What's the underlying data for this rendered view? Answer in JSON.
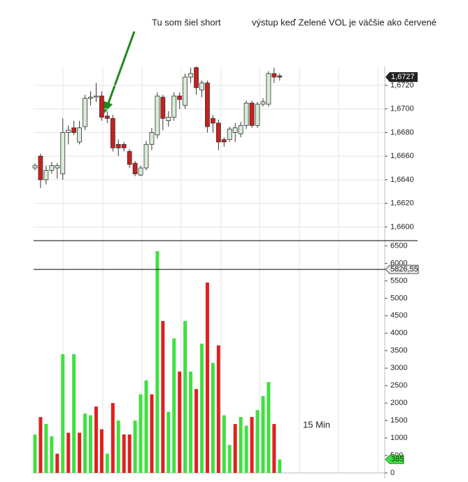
{
  "chart_data": [
    {
      "type": "candlestick",
      "annotations": [
        "Tu som šiel short",
        "výstup keď Zelené VOL je väčšie  ako červené",
        "15 Min"
      ],
      "open": [
        1.665,
        1.666,
        1.664,
        1.6648,
        1.665,
        1.6645,
        1.668,
        1.6684,
        1.6672,
        1.6685,
        1.6709,
        1.671,
        1.6711,
        1.6694,
        1.6692,
        1.667,
        1.667,
        1.6664,
        1.6654,
        1.6644,
        1.665,
        1.667,
        1.6678,
        1.671,
        1.669,
        1.6693,
        1.6711,
        1.6703,
        1.6727,
        1.6735,
        1.6716,
        1.6722,
        1.6692,
        1.6688,
        1.6674,
        1.6674,
        1.668,
        1.6679,
        1.6686,
        1.6705,
        1.6686,
        1.6704,
        1.6704,
        1.673,
        1.6728
      ],
      "high": [
        1.6654,
        1.6662,
        1.6652,
        1.6655,
        1.6654,
        1.6692,
        1.6686,
        1.669,
        1.669,
        1.6712,
        1.6715,
        1.6722,
        1.6715,
        1.6698,
        1.6695,
        1.6674,
        1.6672,
        1.6666,
        1.6656,
        1.6652,
        1.6673,
        1.6684,
        1.6714,
        1.6712,
        1.6698,
        1.6714,
        1.6714,
        1.673,
        1.6735,
        1.6736,
        1.6724,
        1.6724,
        1.6695,
        1.6691,
        1.6676,
        1.6685,
        1.6688,
        1.6689,
        1.6707,
        1.6707,
        1.6706,
        1.6709,
        1.6732,
        1.6735,
        1.673
      ],
      "low": [
        1.6648,
        1.6633,
        1.6636,
        1.6645,
        1.6641,
        1.664,
        1.667,
        1.6678,
        1.667,
        1.6682,
        1.6703,
        1.6706,
        1.669,
        1.6688,
        1.6664,
        1.666,
        1.6664,
        1.665,
        1.6643,
        1.6643,
        1.6648,
        1.6665,
        1.6675,
        1.6682,
        1.6685,
        1.669,
        1.67,
        1.67,
        1.6722,
        1.6712,
        1.671,
        1.668,
        1.668,
        1.6665,
        1.6668,
        1.6672,
        1.6672,
        1.6676,
        1.6683,
        1.6684,
        1.6684,
        1.6702,
        1.6702,
        1.6722,
        1.6724
      ],
      "close": [
        1.6652,
        1.664,
        1.6648,
        1.6652,
        1.6652,
        1.668,
        1.6682,
        1.668,
        1.6684,
        1.6709,
        1.671,
        1.6711,
        1.6693,
        1.6692,
        1.6667,
        1.6667,
        1.6667,
        1.6653,
        1.6645,
        1.665,
        1.667,
        1.668,
        1.6711,
        1.6692,
        1.6693,
        1.6711,
        1.6708,
        1.6727,
        1.673,
        1.6718,
        1.6722,
        1.6685,
        1.6688,
        1.6672,
        1.6672,
        1.6683,
        1.6684,
        1.6686,
        1.6705,
        1.6686,
        1.6704,
        1.6706,
        1.673,
        1.6727,
        1.6727
      ],
      "up_color": "#d8ecd8",
      "down_color": "#c8201c",
      "ylim": [
        1.6589,
        1.6736
      ],
      "yticks": [
        {
          "value": 1.66,
          "label": "1,6600"
        },
        {
          "value": 1.662,
          "label": "1,6620"
        },
        {
          "value": 1.664,
          "label": "1,6640"
        },
        {
          "value": 1.666,
          "label": "1,6660"
        },
        {
          "value": 1.668,
          "label": "1,6680"
        },
        {
          "value": 1.67,
          "label": "1,6700"
        },
        {
          "value": 1.672,
          "label": "1,6720"
        }
      ],
      "last_price": {
        "value": 1.6727,
        "label": "1,6727"
      },
      "grid": true
    },
    {
      "type": "bar",
      "values": [
        1100,
        1600,
        1400,
        1050,
        550,
        3400,
        1150,
        3400,
        1150,
        1700,
        1650,
        1900,
        1250,
        550,
        2000,
        1500,
        1100,
        1100,
        1500,
        2250,
        2650,
        2250,
        6350,
        4350,
        1750,
        3850,
        2900,
        4350,
        2900,
        2400,
        3700,
        5450,
        3150,
        3650,
        1650,
        800,
        1400,
        1600,
        1350,
        1600,
        1800,
        2200,
        2600,
        1400,
        385
      ],
      "colors": [
        "#40e040",
        "#e02020",
        "#40e040",
        "#40e040",
        "#e02020",
        "#40e040",
        "#e02020",
        "#40e040",
        "#e02020",
        "#40e040",
        "#40e040",
        "#e02020",
        "#e02020",
        "#40e040",
        "#e02020",
        "#40e040",
        "#e02020",
        "#e02020",
        "#40e040",
        "#40e040",
        "#40e040",
        "#e02020",
        "#40e040",
        "#e02020",
        "#40e040",
        "#40e040",
        "#e02020",
        "#40e040",
        "#40e040",
        "#e02020",
        "#40e040",
        "#e02020",
        "#40e040",
        "#e02020",
        "#40e040",
        "#40e040",
        "#e02020",
        "#40e040",
        "#40e040",
        "#e02020",
        "#40e040",
        "#40e040",
        "#40e040",
        "#e02020",
        "#40e040"
      ],
      "ylim": [
        0,
        6650
      ],
      "yticks": [
        0,
        500,
        1000,
        1500,
        2000,
        2500,
        3000,
        3500,
        4000,
        4500,
        5000,
        5500,
        6000,
        6500
      ],
      "level": {
        "value": 5826.55,
        "label": "5826,55"
      },
      "last_volume": 385
    }
  ]
}
